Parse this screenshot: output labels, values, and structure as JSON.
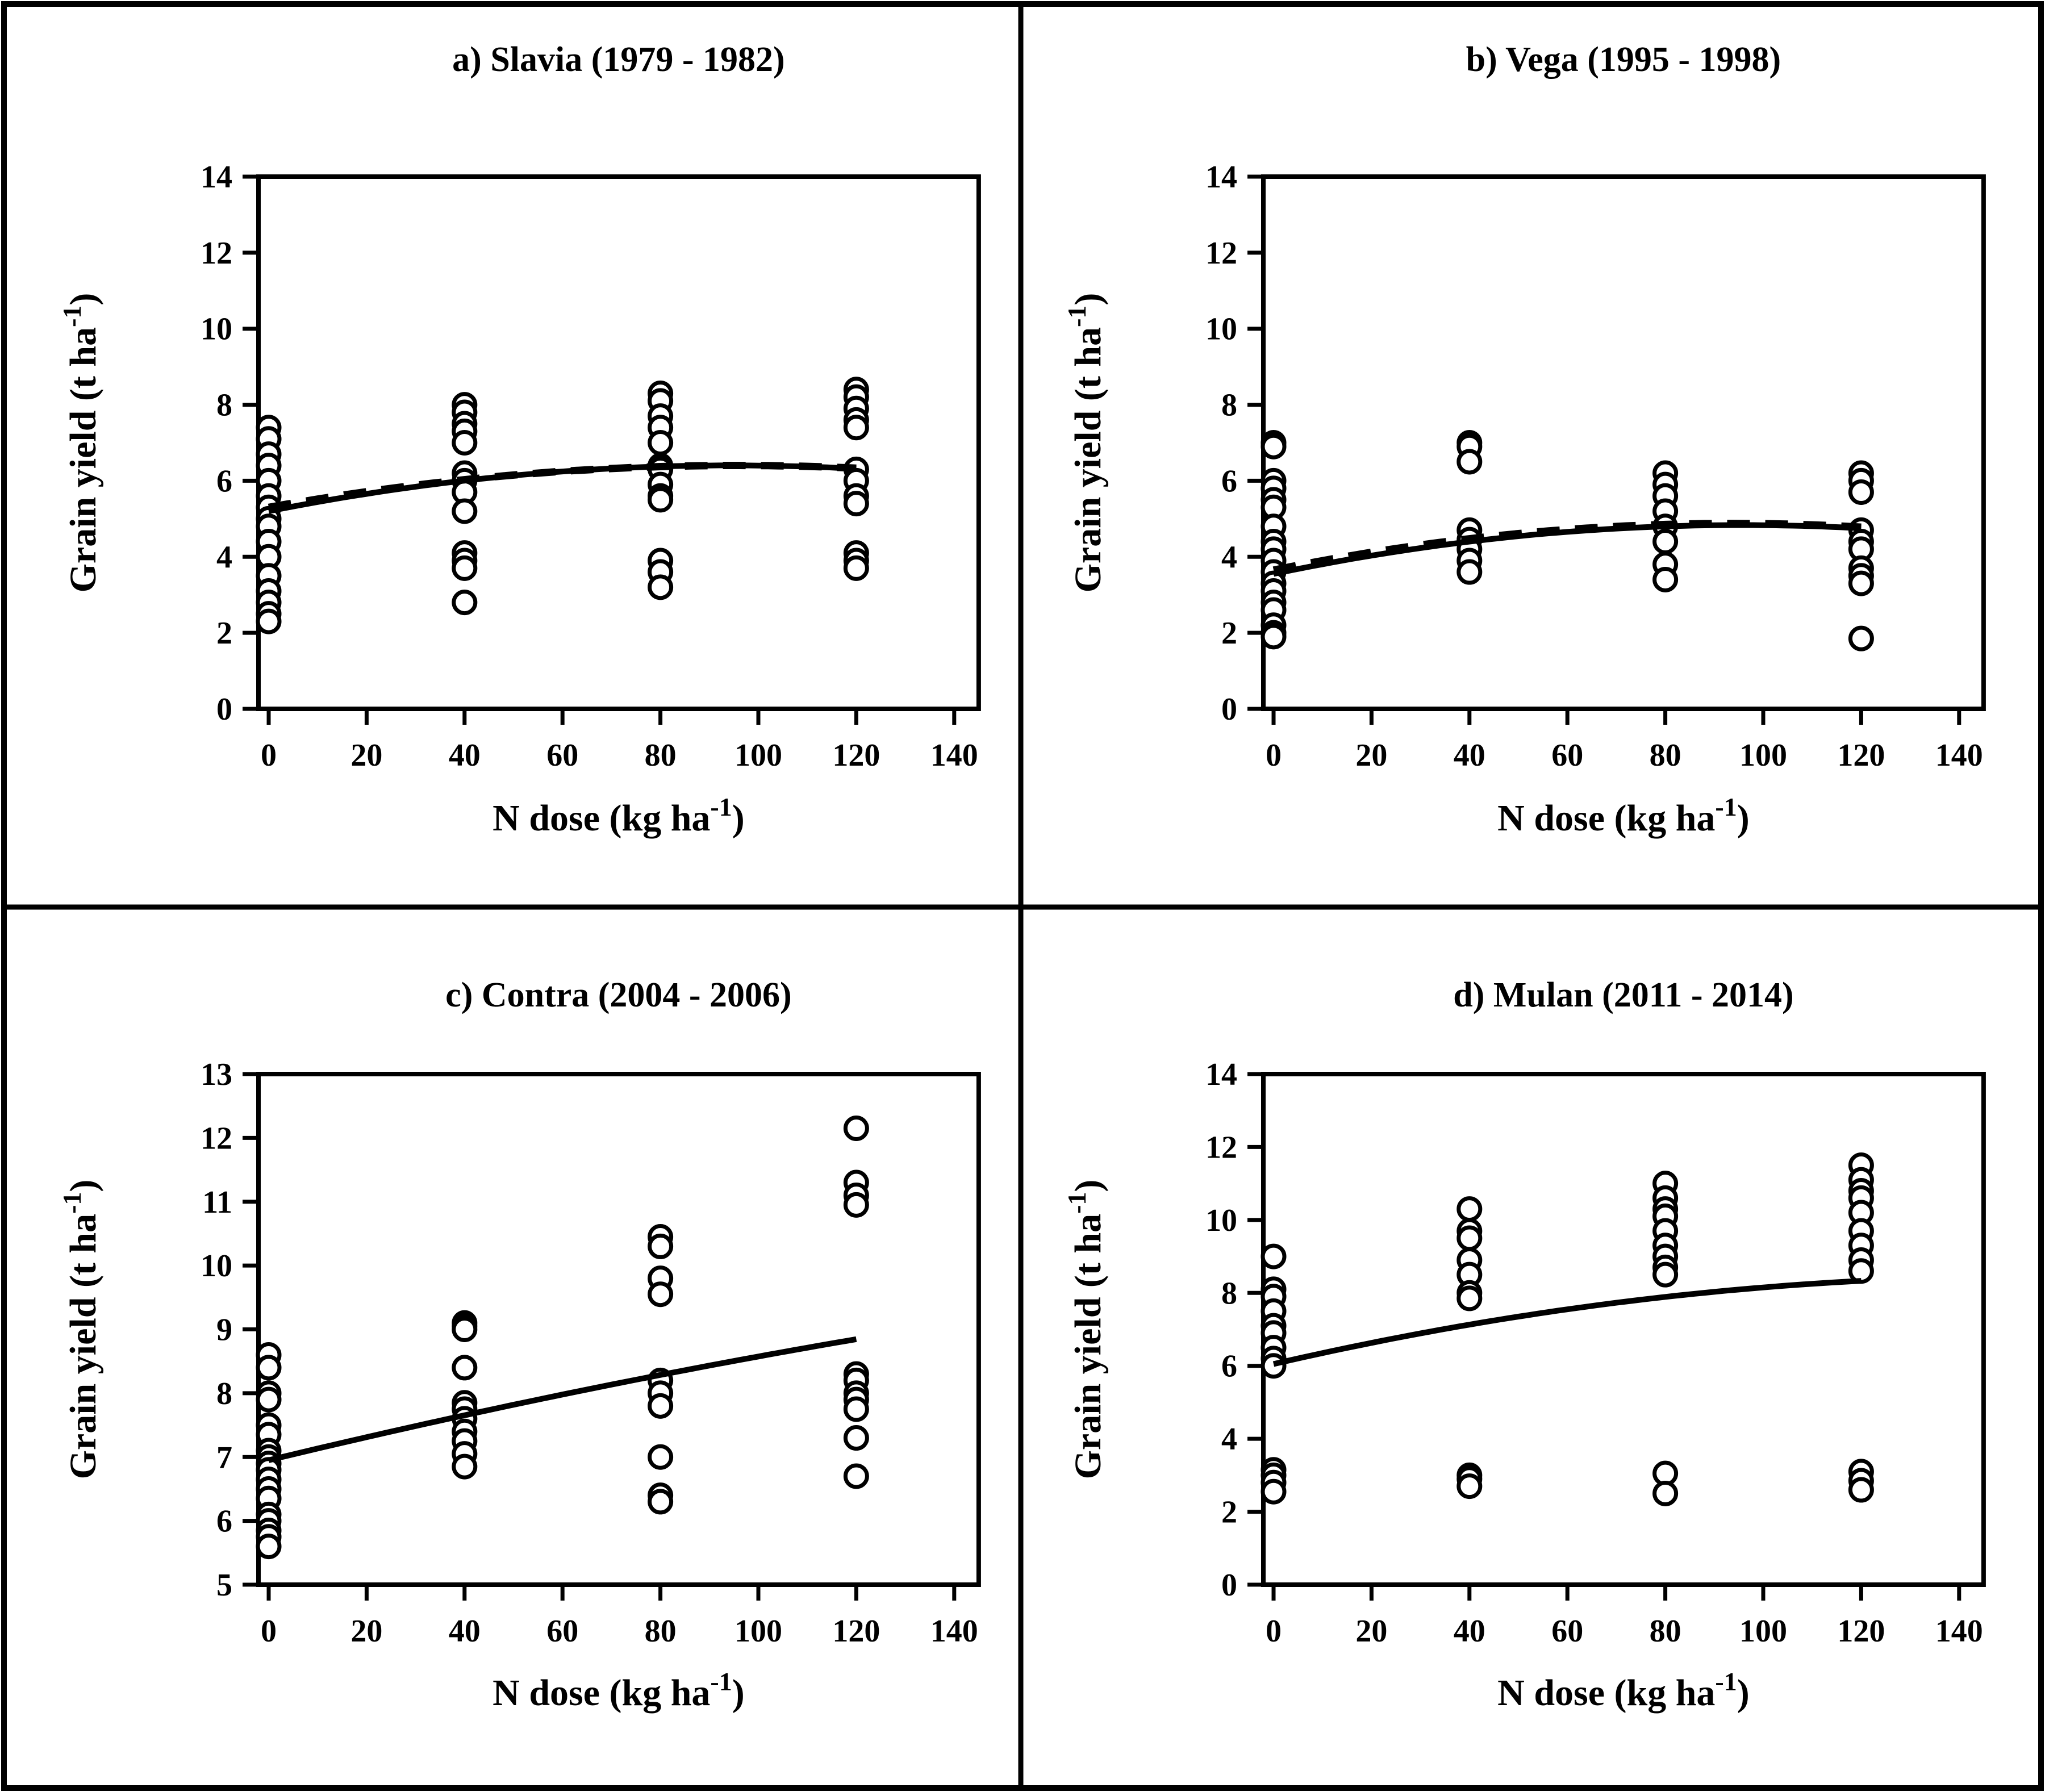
{
  "figure": {
    "background": "#ffffff",
    "frame_color": "#000000",
    "marker_color": "#000000",
    "marker_fill": "#ffffff",
    "curve_color": "#000000"
  },
  "chart_data": [
    {
      "id": "a",
      "type": "scatter",
      "title": "a) Slavia (1979 - 1982)",
      "xlabel": {
        "pre": "N dose (kg ha",
        "sup": "-1",
        "post": ")"
      },
      "ylabel": {
        "pre": "Grain yield (t ha",
        "sup": "-1",
        "post": ")"
      },
      "xlim": [
        0,
        140
      ],
      "ylim": [
        0,
        14
      ],
      "xticks": [
        0,
        20,
        40,
        60,
        80,
        100,
        120,
        140
      ],
      "yticks": [
        0,
        2,
        4,
        6,
        8,
        10,
        12,
        14
      ],
      "grid": false,
      "legend": null,
      "points": [
        {
          "x": 0,
          "y": [
            7.4,
            7.1,
            6.7,
            6.4,
            6.0,
            5.6,
            5.3,
            5.0,
            4.8,
            4.4,
            4.0,
            3.5,
            3.1,
            2.8,
            2.5,
            2.3
          ]
        },
        {
          "x": 40,
          "y": [
            8.0,
            7.8,
            7.5,
            7.3,
            7.0,
            6.2,
            6.0,
            5.7,
            5.2,
            4.1,
            3.9,
            3.7,
            2.8
          ]
        },
        {
          "x": 80,
          "y": [
            8.3,
            8.1,
            7.7,
            7.4,
            7.0,
            6.4,
            6.3,
            5.9,
            5.6,
            5.5,
            3.9,
            3.6,
            3.2
          ]
        },
        {
          "x": 120,
          "y": [
            8.4,
            8.2,
            7.9,
            7.6,
            7.4,
            6.3,
            6.0,
            5.6,
            5.4,
            4.1,
            3.9,
            3.7
          ]
        }
      ],
      "curves": [
        {
          "name": "solid-fit",
          "style": "solid",
          "a": 5.2,
          "b": 0.0255,
          "c": -0.000135,
          "x_range": [
            0,
            120
          ]
        },
        {
          "name": "dashed-fit",
          "style": "dashed",
          "a": 5.3,
          "b": 0.023,
          "c": -0.00012,
          "x_range": [
            0,
            120
          ]
        }
      ]
    },
    {
      "id": "b",
      "type": "scatter",
      "title": "b) Vega (1995 - 1998)",
      "xlabel": {
        "pre": "N dose (kg ha",
        "sup": "-1",
        "post": ")"
      },
      "ylabel": {
        "pre": "Grain yield (t ha",
        "sup": "-1",
        "post": ")"
      },
      "xlim": [
        0,
        140
      ],
      "ylim": [
        0,
        14
      ],
      "xticks": [
        0,
        20,
        40,
        60,
        80,
        100,
        120,
        140
      ],
      "yticks": [
        0,
        2,
        4,
        6,
        8,
        10,
        12,
        14
      ],
      "grid": false,
      "legend": null,
      "points": [
        {
          "x": 0,
          "y": [
            7.0,
            6.9,
            6.0,
            5.8,
            5.5,
            5.3,
            4.8,
            4.4,
            4.2,
            3.9,
            3.6,
            3.3,
            3.1,
            2.8,
            2.6,
            2.2,
            2.0,
            1.9
          ]
        },
        {
          "x": 40,
          "y": [
            7.0,
            6.9,
            6.5,
            4.7,
            4.45,
            4.2,
            3.9,
            3.6
          ]
        },
        {
          "x": 80,
          "y": [
            6.2,
            5.9,
            5.6,
            5.2,
            4.8,
            4.4,
            3.8,
            3.4
          ]
        },
        {
          "x": 120,
          "y": [
            6.2,
            6.0,
            5.7,
            4.7,
            4.4,
            4.2,
            3.7,
            3.5,
            3.3,
            1.85
          ]
        }
      ],
      "curves": [
        {
          "name": "solid-fit",
          "style": "solid",
          "a": 3.55,
          "b": 0.02687,
          "c": -0.0001406,
          "x_range": [
            0,
            120
          ]
        },
        {
          "name": "dashed-fit",
          "style": "dashed",
          "a": 3.65,
          "b": 0.02617,
          "c": -0.0001396,
          "x_range": [
            0,
            120
          ]
        }
      ]
    },
    {
      "id": "c",
      "type": "scatter",
      "title": "c) Contra (2004 - 2006)",
      "xlabel": {
        "pre": "N dose (kg ha",
        "sup": "-1",
        "post": ")"
      },
      "ylabel": {
        "pre": "Grain yield (t ha",
        "sup": "-1",
        "post": ")"
      },
      "xlim": [
        0,
        140
      ],
      "ylim": [
        5,
        13
      ],
      "xticks": [
        0,
        20,
        40,
        60,
        80,
        100,
        120,
        140
      ],
      "yticks": [
        5,
        6,
        7,
        8,
        9,
        10,
        11,
        12,
        13
      ],
      "grid": false,
      "legend": null,
      "points": [
        {
          "x": 0,
          "y": [
            8.6,
            8.4,
            8.0,
            7.9,
            7.5,
            7.35,
            7.1,
            7.0,
            6.9,
            6.8,
            6.65,
            6.5,
            6.35,
            6.1,
            6.0,
            5.85,
            5.75,
            5.6
          ]
        },
        {
          "x": 40,
          "y": [
            9.1,
            9.05,
            9.0,
            8.4,
            7.85,
            7.75,
            7.6,
            7.4,
            7.25,
            7.05,
            6.85
          ]
        },
        {
          "x": 80,
          "y": [
            10.45,
            10.3,
            9.8,
            9.55,
            8.2,
            8.0,
            7.8,
            7.0,
            6.4,
            6.3
          ]
        },
        {
          "x": 120,
          "y": [
            12.15,
            11.3,
            11.1,
            10.95,
            8.3,
            8.2,
            8.0,
            7.9,
            7.75,
            7.3,
            6.7
          ]
        }
      ],
      "curves": [
        {
          "name": "solid-fit",
          "style": "solid",
          "a": 6.95,
          "b": 0.0185,
          "c": -2.25e-05,
          "x_range": [
            0,
            120
          ]
        }
      ]
    },
    {
      "id": "d",
      "type": "scatter",
      "title": "d) Mulan (2011 - 2014)",
      "xlabel": {
        "pre": "N dose (kg ha",
        "sup": "-1",
        "post": ")"
      },
      "ylabel": {
        "pre": "Grain yield (t ha",
        "sup": "-1",
        "post": ")"
      },
      "xlim": [
        0,
        140
      ],
      "ylim": [
        0,
        14
      ],
      "xticks": [
        0,
        20,
        40,
        60,
        80,
        100,
        120,
        140
      ],
      "yticks": [
        0,
        2,
        4,
        6,
        8,
        10,
        12,
        14
      ],
      "grid": false,
      "legend": null,
      "points": [
        {
          "x": 0,
          "y": [
            9.0,
            8.1,
            7.9,
            7.5,
            7.1,
            6.9,
            6.5,
            6.2,
            6.0,
            3.15,
            3.0,
            2.8,
            2.55
          ]
        },
        {
          "x": 40,
          "y": [
            10.3,
            9.7,
            9.5,
            8.9,
            8.5,
            8.0,
            7.85,
            3.0,
            2.9,
            2.7
          ]
        },
        {
          "x": 80,
          "y": [
            11.0,
            10.6,
            10.3,
            10.1,
            9.7,
            9.3,
            9.0,
            8.7,
            8.5,
            3.05,
            2.5
          ]
        },
        {
          "x": 120,
          "y": [
            11.5,
            11.1,
            10.8,
            10.6,
            10.2,
            9.7,
            9.3,
            8.9,
            8.6,
            3.1,
            2.85,
            2.6
          ]
        }
      ],
      "curves": [
        {
          "name": "solid-fit",
          "style": "solid",
          "a": 6.05,
          "b": 0.031,
          "c": -0.0001,
          "x_range": [
            0,
            120
          ]
        }
      ]
    }
  ]
}
